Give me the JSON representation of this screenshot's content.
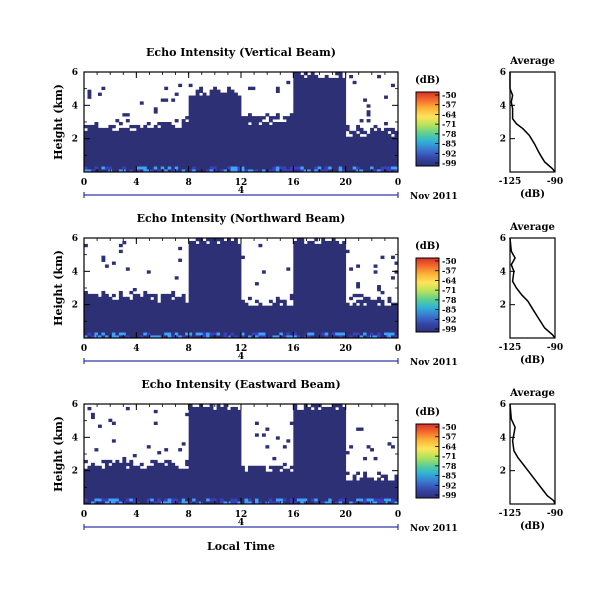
{
  "figure": {
    "common": {
      "ylabel": "Height (km)",
      "colorbar_unit": "(dB)",
      "colorbar_ticks": [
        "-50",
        "-57",
        "-64",
        "-71",
        "-78",
        "-85",
        "-92",
        "-99"
      ],
      "profile_title": "Average",
      "profile_xlabel": "(dB)",
      "date_label": "Nov 2011",
      "day_label": "4",
      "x_ticks": [
        "0",
        "4",
        "8",
        "12",
        "16",
        "20",
        "0"
      ],
      "y_ticks": [
        "6",
        "4",
        "2"
      ],
      "profile_y_ticks": [
        "6",
        "4",
        "2"
      ],
      "xlabel": "Local Time"
    },
    "colors": {
      "background": "#ffffff",
      "echo_fill": "#2d3074",
      "low_echo": "#3a3fc0",
      "strong_echo": "#3fa0ff",
      "colormap": [
        "#d7302a",
        "#f46d2c",
        "#fdb53a",
        "#ffe45a",
        "#b8e35a",
        "#5fd08f",
        "#2fb3d6",
        "#3a78d0",
        "#3646a8",
        "#2d3074"
      ]
    }
  },
  "chart_data": [
    {
      "type": "heatmap",
      "title": "Echo Intensity (Vertical Beam)",
      "xlabel": "",
      "ylabel": "Height (km)",
      "x_unit": "local time (h)",
      "xlim": [
        0,
        24
      ],
      "ylim": [
        0,
        6
      ],
      "color_range_dB": [
        -99,
        -50
      ],
      "background_dB": -99,
      "echo_coverage": [
        {
          "t0": 0,
          "t1": 4,
          "top_km": 2.9
        },
        {
          "t0": 4,
          "t1": 8,
          "top_km": 3.0
        },
        {
          "t0": 8,
          "t1": 12,
          "top_km": 5.0
        },
        {
          "t0": 12,
          "t1": 16,
          "top_km": 3.3
        },
        {
          "t0": 16,
          "t1": 20,
          "top_km": 6.0
        },
        {
          "t0": 20,
          "t1": 24,
          "top_km": 2.6
        }
      ],
      "profile": {
        "title": "Average",
        "xlabel": "(dB)",
        "x_ticks": [
          -125,
          -90
        ],
        "xlim": [
          -125,
          -90
        ],
        "ylim": [
          0,
          6
        ],
        "points": [
          [
            -125,
            6.0
          ],
          [
            -125,
            5.0
          ],
          [
            -123,
            4.6
          ],
          [
            -124,
            4.2
          ],
          [
            -123,
            3.8
          ],
          [
            -123,
            3.2
          ],
          [
            -120,
            2.9
          ],
          [
            -115,
            2.6
          ],
          [
            -110,
            2.2
          ],
          [
            -106,
            1.7
          ],
          [
            -102,
            1.1
          ],
          [
            -98,
            0.6
          ],
          [
            -92,
            0.2
          ],
          [
            -90,
            0.0
          ]
        ]
      }
    },
    {
      "type": "heatmap",
      "title": "Echo Intensity (Northward Beam)",
      "xlabel": "",
      "ylabel": "Height (km)",
      "x_unit": "local time (h)",
      "xlim": [
        0,
        24
      ],
      "ylim": [
        0,
        6
      ],
      "color_range_dB": [
        -99,
        -50
      ],
      "background_dB": -99,
      "echo_coverage": [
        {
          "t0": 0,
          "t1": 4,
          "top_km": 2.7
        },
        {
          "t0": 4,
          "t1": 8,
          "top_km": 2.6
        },
        {
          "t0": 8,
          "t1": 12,
          "top_km": 6.0
        },
        {
          "t0": 12,
          "t1": 16,
          "top_km": 2.4
        },
        {
          "t0": 16,
          "t1": 20,
          "top_km": 6.0
        },
        {
          "t0": 20,
          "t1": 24,
          "top_km": 2.4
        }
      ],
      "profile": {
        "title": "Average",
        "xlabel": "(dB)",
        "x_ticks": [
          -125,
          -90
        ],
        "xlim": [
          -125,
          -90
        ],
        "ylim": [
          0,
          6
        ],
        "points": [
          [
            -125,
            6.0
          ],
          [
            -124,
            5.2
          ],
          [
            -121,
            4.8
          ],
          [
            -124,
            4.4
          ],
          [
            -122,
            4.0
          ],
          [
            -123,
            3.4
          ],
          [
            -120,
            3.0
          ],
          [
            -116,
            2.6
          ],
          [
            -111,
            2.2
          ],
          [
            -107,
            1.7
          ],
          [
            -103,
            1.2
          ],
          [
            -98,
            0.6
          ],
          [
            -92,
            0.2
          ],
          [
            -90,
            0.0
          ]
        ]
      }
    },
    {
      "type": "heatmap",
      "title": "Echo Intensity (Eastward Beam)",
      "xlabel": "Local Time",
      "ylabel": "Height (km)",
      "x_unit": "local time (h)",
      "xlim": [
        0,
        24
      ],
      "ylim": [
        0,
        6
      ],
      "color_range_dB": [
        -99,
        -50
      ],
      "background_dB": -99,
      "echo_coverage": [
        {
          "t0": 0,
          "t1": 4,
          "top_km": 2.6
        },
        {
          "t0": 4,
          "t1": 8,
          "top_km": 2.5
        },
        {
          "t0": 8,
          "t1": 12,
          "top_km": 6.0
        },
        {
          "t0": 12,
          "t1": 16,
          "top_km": 2.3
        },
        {
          "t0": 16,
          "t1": 20,
          "top_km": 6.0
        },
        {
          "t0": 20,
          "t1": 24,
          "top_km": 1.8
        }
      ],
      "profile": {
        "title": "Average",
        "xlabel": "(dB)",
        "x_ticks": [
          -125,
          -90
        ],
        "xlim": [
          -125,
          -90
        ],
        "ylim": [
          0,
          6
        ],
        "points": [
          [
            -125,
            6.0
          ],
          [
            -124,
            5.1
          ],
          [
            -121,
            4.6
          ],
          [
            -122,
            4.2
          ],
          [
            -123,
            3.8
          ],
          [
            -122,
            3.2
          ],
          [
            -119,
            2.8
          ],
          [
            -115,
            2.4
          ],
          [
            -110,
            1.9
          ],
          [
            -105,
            1.4
          ],
          [
            -100,
            0.9
          ],
          [
            -96,
            0.5
          ],
          [
            -91,
            0.2
          ],
          [
            -90,
            0.0
          ]
        ]
      }
    }
  ]
}
